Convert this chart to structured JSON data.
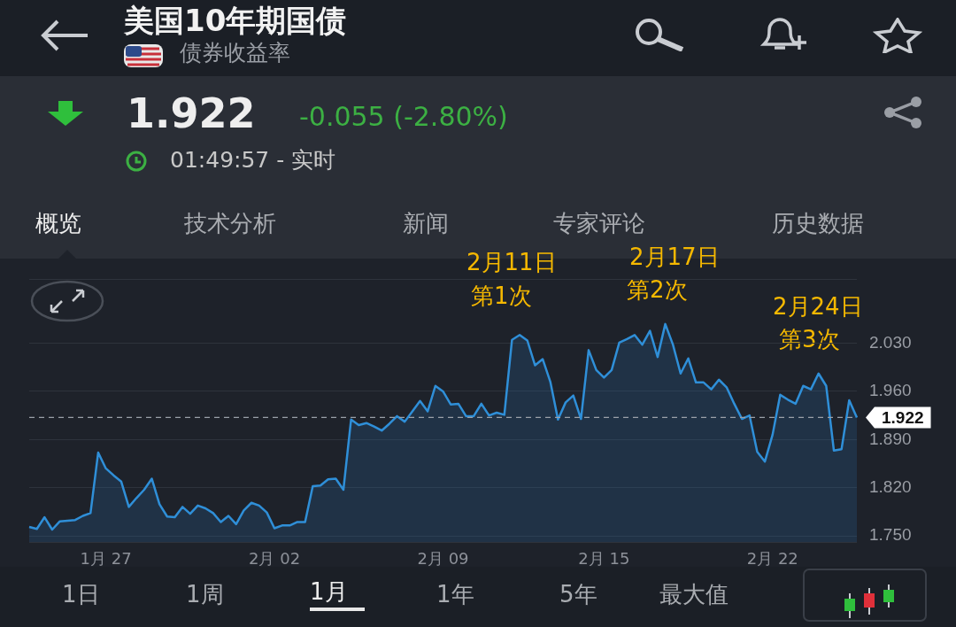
{
  "chart_data": {
    "type": "area",
    "title": "美国10年期国债",
    "subtitle": "债券收益率",
    "categories": [
      null,
      null,
      null,
      null,
      null,
      null,
      null,
      null,
      null,
      null,
      "1月 27",
      null,
      null,
      null,
      null,
      null,
      null,
      null,
      null,
      null,
      null,
      null,
      null,
      null,
      null,
      null,
      null,
      null,
      null,
      null,
      null,
      null,
      "2月 02",
      null,
      null,
      null,
      null,
      null,
      null,
      null,
      null,
      null,
      null,
      null,
      null,
      null,
      null,
      null,
      null,
      null,
      null,
      null,
      null,
      null,
      "2月 09",
      null,
      null,
      null,
      null,
      null,
      null,
      null,
      null,
      null,
      null,
      null,
      null,
      null,
      null,
      null,
      null,
      null,
      null,
      null,
      null,
      "2月 15",
      null,
      null,
      null,
      null,
      null,
      null,
      null,
      null,
      null,
      null,
      null,
      null,
      null,
      null,
      null,
      null,
      null,
      null,
      null,
      null,
      null,
      "2月 22",
      null,
      null,
      null,
      null,
      null,
      null,
      null,
      null,
      null,
      null,
      null
    ],
    "series": [
      {
        "color": "#2f8fd8",
        "values": [
          1.763,
          1.76,
          1.777,
          1.759,
          1.771,
          1.772,
          1.773,
          1.779,
          1.783,
          1.871,
          1.848,
          1.838,
          1.829,
          1.792,
          1.805,
          1.817,
          1.833,
          1.796,
          1.778,
          1.777,
          1.792,
          1.782,
          1.794,
          1.79,
          1.783,
          1.77,
          1.779,
          1.767,
          1.787,
          1.798,
          1.794,
          1.784,
          1.761,
          1.765,
          1.765,
          1.77,
          1.77,
          1.822,
          1.823,
          1.832,
          1.833,
          1.817,
          1.919,
          1.911,
          1.914,
          1.909,
          1.903,
          1.913,
          1.924,
          1.916,
          1.931,
          1.946,
          1.931,
          1.968,
          1.96,
          1.941,
          1.942,
          1.924,
          1.924,
          1.942,
          1.925,
          1.929,
          1.926,
          2.035,
          2.042,
          2.034,
          1.998,
          2.007,
          1.974,
          1.919,
          1.944,
          1.954,
          1.92,
          2.02,
          1.991,
          1.98,
          1.991,
          2.031,
          2.036,
          2.042,
          2.028,
          2.048,
          2.01,
          2.058,
          2.028,
          1.986,
          2.008,
          1.973,
          1.973,
          1.963,
          1.977,
          1.966,
          1.942,
          1.92,
          1.925,
          1.872,
          1.858,
          1.897,
          1.955,
          1.948,
          1.942,
          1.968,
          1.963,
          1.986,
          1.968,
          1.874,
          1.876,
          1.947,
          1.922
        ]
      }
    ],
    "ylim": [
      1.741,
      2.123
    ],
    "yticks": [
      {
        "value": 1.75,
        "label": "1.750"
      },
      {
        "value": 1.82,
        "label": "1.820"
      },
      {
        "value": 1.89,
        "label": "1.890"
      },
      {
        "value": 1.96,
        "label": "1.960"
      },
      {
        "value": 2.03,
        "label": "2.030"
      }
    ],
    "grid": "y",
    "legend": false,
    "ref_lines": [
      {
        "axis": "y",
        "value": 1.922,
        "label": "1.922",
        "line_style": "dashed",
        "color": "#9aa0a8"
      }
    ],
    "annotations": [
      "1.922",
      "-0.055 (-2.80%)",
      "01:49:57 - 实时",
      "概览",
      "技术分析",
      "新闻",
      "专家评论",
      "历史数据",
      "1日",
      "1周",
      "1月",
      "1年",
      "5年",
      "最大值",
      "2月11日",
      "第1次",
      "2月17日",
      "第2次",
      "2月24日",
      "第3次"
    ]
  }
}
